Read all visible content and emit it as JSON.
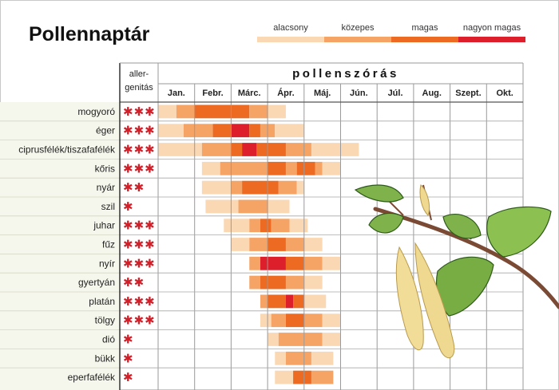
{
  "chart_data": {
    "type": "heatmap",
    "title": "Pollennaptár",
    "column_title": "pollenszórás",
    "allergen_header": [
      "aller-",
      "genitás"
    ],
    "legend": [
      {
        "label": "alacsony",
        "color": "#fbd8b4",
        "level": 1
      },
      {
        "label": "közepes",
        "color": "#f6a465",
        "level": 2
      },
      {
        "label": "magas",
        "color": "#ec6a22",
        "level": 3
      },
      {
        "label": "nagyon magas",
        "color": "#dc1f2b",
        "level": 4
      }
    ],
    "months": [
      "Jan.",
      "Febr.",
      "Márc.",
      "Ápr.",
      "Máj.",
      "Jún.",
      "Júl.",
      "Aug.",
      "Szept.",
      "Okt."
    ],
    "plants": [
      {
        "name": "mogyoró",
        "stars": "✱✱✱",
        "segments": [
          {
            "start": 0.0,
            "end": 0.5,
            "level": 1
          },
          {
            "start": 0.5,
            "end": 1.0,
            "level": 2
          },
          {
            "start": 1.0,
            "end": 2.5,
            "level": 3
          },
          {
            "start": 2.5,
            "end": 3.0,
            "level": 2
          },
          {
            "start": 3.0,
            "end": 3.5,
            "level": 1
          }
        ]
      },
      {
        "name": "éger",
        "stars": "✱✱✱",
        "segments": [
          {
            "start": 0.0,
            "end": 0.7,
            "level": 1
          },
          {
            "start": 0.7,
            "end": 1.5,
            "level": 2
          },
          {
            "start": 1.5,
            "end": 2.0,
            "level": 3
          },
          {
            "start": 2.0,
            "end": 2.5,
            "level": 4
          },
          {
            "start": 2.5,
            "end": 2.8,
            "level": 3
          },
          {
            "start": 2.8,
            "end": 3.2,
            "level": 2
          },
          {
            "start": 3.2,
            "end": 4.0,
            "level": 1
          }
        ]
      },
      {
        "name": "ciprusfélék/tiszafafélék",
        "stars": "✱✱✱",
        "segments": [
          {
            "start": 0.0,
            "end": 1.2,
            "level": 1
          },
          {
            "start": 1.2,
            "end": 2.0,
            "level": 2
          },
          {
            "start": 2.0,
            "end": 2.3,
            "level": 3
          },
          {
            "start": 2.3,
            "end": 2.7,
            "level": 4
          },
          {
            "start": 2.7,
            "end": 3.5,
            "level": 3
          },
          {
            "start": 3.5,
            "end": 4.2,
            "level": 2
          },
          {
            "start": 4.2,
            "end": 5.5,
            "level": 1
          }
        ]
      },
      {
        "name": "kőris",
        "stars": "✱✱✱",
        "segments": [
          {
            "start": 1.2,
            "end": 1.7,
            "level": 1
          },
          {
            "start": 1.7,
            "end": 3.0,
            "level": 2
          },
          {
            "start": 3.0,
            "end": 3.5,
            "level": 3
          },
          {
            "start": 3.5,
            "end": 3.8,
            "level": 2
          },
          {
            "start": 3.8,
            "end": 4.3,
            "level": 3
          },
          {
            "start": 4.3,
            "end": 4.5,
            "level": 2
          },
          {
            "start": 4.5,
            "end": 5.0,
            "level": 1
          }
        ]
      },
      {
        "name": "nyár",
        "stars": "✱✱",
        "segments": [
          {
            "start": 1.2,
            "end": 2.0,
            "level": 1
          },
          {
            "start": 2.0,
            "end": 2.3,
            "level": 2
          },
          {
            "start": 2.3,
            "end": 3.3,
            "level": 3
          },
          {
            "start": 3.3,
            "end": 3.8,
            "level": 2
          },
          {
            "start": 3.8,
            "end": 4.0,
            "level": 1
          }
        ]
      },
      {
        "name": "szil",
        "stars": "✱",
        "segments": [
          {
            "start": 1.3,
            "end": 2.2,
            "level": 1
          },
          {
            "start": 2.2,
            "end": 3.0,
            "level": 2
          },
          {
            "start": 3.0,
            "end": 3.6,
            "level": 1
          }
        ]
      },
      {
        "name": "juhar",
        "stars": "✱✱✱",
        "segments": [
          {
            "start": 1.8,
            "end": 2.5,
            "level": 1
          },
          {
            "start": 2.5,
            "end": 2.8,
            "level": 2
          },
          {
            "start": 2.8,
            "end": 3.1,
            "level": 3
          },
          {
            "start": 3.1,
            "end": 3.6,
            "level": 2
          },
          {
            "start": 3.6,
            "end": 4.1,
            "level": 1
          }
        ]
      },
      {
        "name": "fűz",
        "stars": "✱✱✱",
        "segments": [
          {
            "start": 2.0,
            "end": 2.5,
            "level": 1
          },
          {
            "start": 2.5,
            "end": 3.0,
            "level": 2
          },
          {
            "start": 3.0,
            "end": 3.5,
            "level": 3
          },
          {
            "start": 3.5,
            "end": 4.0,
            "level": 2
          },
          {
            "start": 4.0,
            "end": 4.5,
            "level": 1
          }
        ]
      },
      {
        "name": "nyír",
        "stars": "✱✱✱",
        "segments": [
          {
            "start": 2.5,
            "end": 2.8,
            "level": 2
          },
          {
            "start": 2.8,
            "end": 3.5,
            "level": 4
          },
          {
            "start": 3.5,
            "end": 4.0,
            "level": 3
          },
          {
            "start": 4.0,
            "end": 4.5,
            "level": 2
          },
          {
            "start": 4.5,
            "end": 5.0,
            "level": 1
          }
        ]
      },
      {
        "name": "gyertyán",
        "stars": "✱✱",
        "segments": [
          {
            "start": 2.5,
            "end": 2.8,
            "level": 2
          },
          {
            "start": 2.8,
            "end": 3.5,
            "level": 3
          },
          {
            "start": 3.5,
            "end": 4.0,
            "level": 2
          },
          {
            "start": 4.0,
            "end": 4.5,
            "level": 1
          }
        ]
      },
      {
        "name": "platán",
        "stars": "✱✱✱",
        "segments": [
          {
            "start": 2.8,
            "end": 3.0,
            "level": 2
          },
          {
            "start": 3.0,
            "end": 3.5,
            "level": 3
          },
          {
            "start": 3.5,
            "end": 3.7,
            "level": 4
          },
          {
            "start": 3.7,
            "end": 4.0,
            "level": 3
          },
          {
            "start": 4.0,
            "end": 4.6,
            "level": 1
          }
        ]
      },
      {
        "name": "tölgy",
        "stars": "✱✱✱",
        "segments": [
          {
            "start": 2.8,
            "end": 3.1,
            "level": 1
          },
          {
            "start": 3.1,
            "end": 3.5,
            "level": 2
          },
          {
            "start": 3.5,
            "end": 4.0,
            "level": 3
          },
          {
            "start": 4.0,
            "end": 4.5,
            "level": 2
          },
          {
            "start": 4.5,
            "end": 5.0,
            "level": 1
          }
        ]
      },
      {
        "name": "dió",
        "stars": "✱",
        "segments": [
          {
            "start": 3.0,
            "end": 3.3,
            "level": 1
          },
          {
            "start": 3.3,
            "end": 4.5,
            "level": 2
          },
          {
            "start": 4.5,
            "end": 5.0,
            "level": 1
          }
        ]
      },
      {
        "name": "bükk",
        "stars": "✱",
        "segments": [
          {
            "start": 3.2,
            "end": 3.5,
            "level": 1
          },
          {
            "start": 3.5,
            "end": 4.2,
            "level": 2
          },
          {
            "start": 4.2,
            "end": 4.8,
            "level": 1
          }
        ]
      },
      {
        "name": "eperfafélék",
        "stars": "✱",
        "segments": [
          {
            "start": 3.2,
            "end": 3.7,
            "level": 1
          },
          {
            "start": 3.7,
            "end": 4.2,
            "level": 3
          },
          {
            "start": 4.2,
            "end": 4.8,
            "level": 2
          }
        ]
      }
    ]
  }
}
